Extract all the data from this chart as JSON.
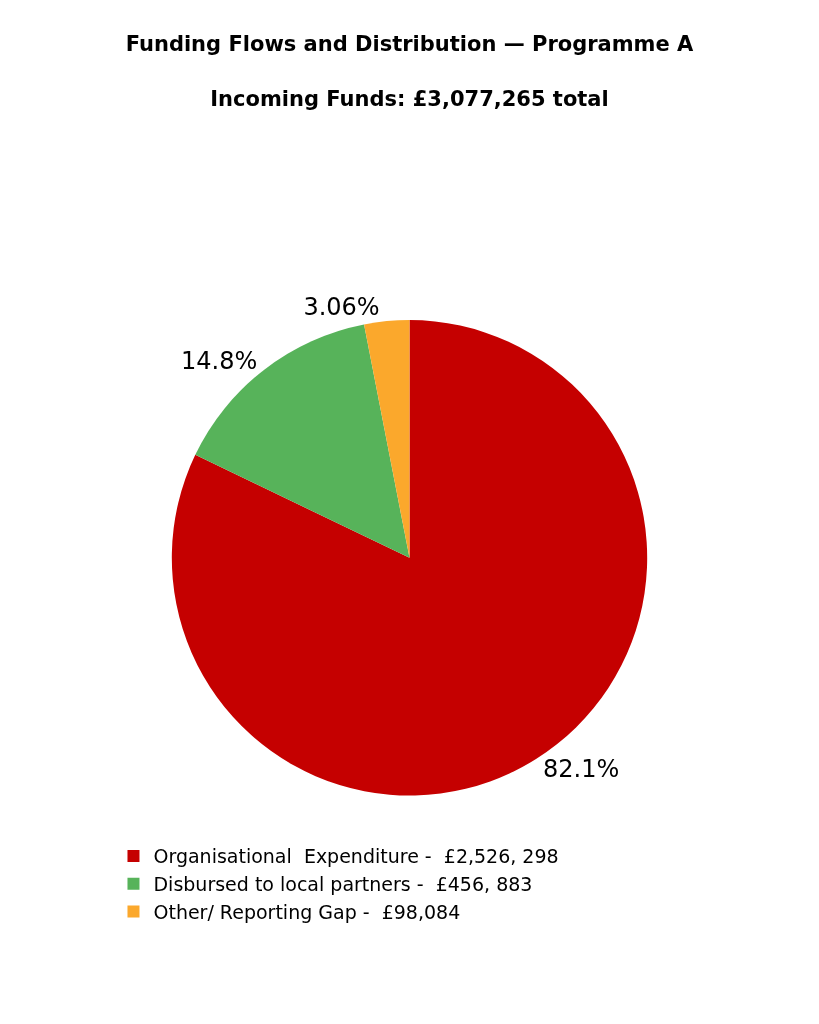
{
  "chart_data": {
    "type": "pie",
    "title": "Funding Flows and Distribution — Programme A",
    "subtitle": "Incoming Funds: £3,077,265 total",
    "categories": [
      "Organisational  Expenditure -  £2,526, 298",
      "Disbursed to local partners -  £456, 883",
      "Other/ Reporting Gap -  £98,084"
    ],
    "values": [
      82.1,
      14.8,
      3.06
    ],
    "colors": [
      "#c50000",
      "#57b35a",
      "#fba82c"
    ],
    "value_labels": [
      "82.1%",
      "14.8%",
      "3.06%"
    ],
    "legend": "bottom"
  }
}
